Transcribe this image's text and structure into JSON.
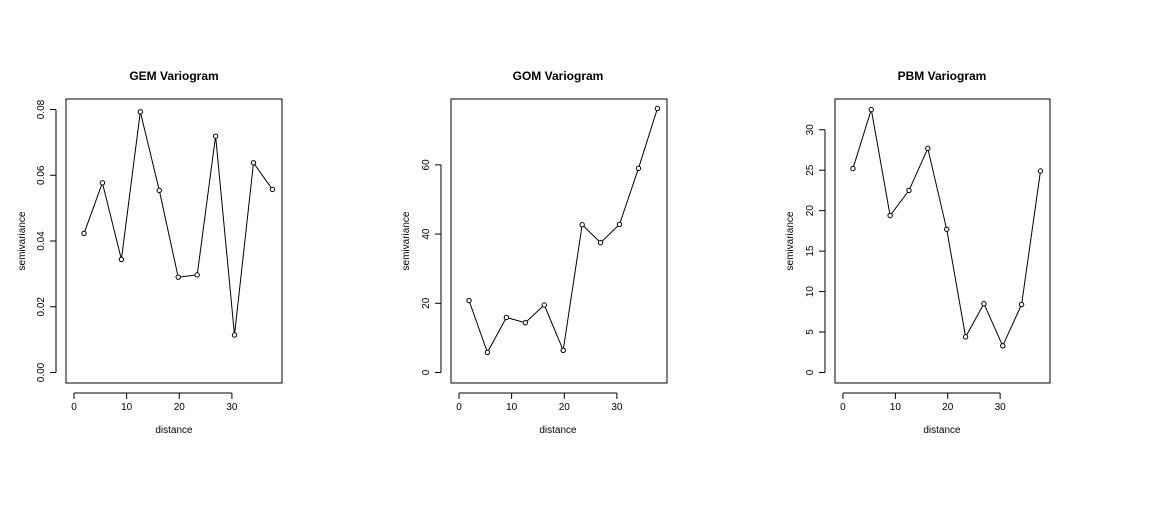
{
  "colors": {
    "line": "#000000",
    "points": "#000000",
    "frame": "#000000",
    "background": "#ffffff"
  },
  "chart_data": [
    {
      "type": "line",
      "title": "GEM Variogram",
      "xlabel": "distance",
      "ylabel": "semivariance",
      "xlim": [
        0,
        38
      ],
      "ylim": [
        0,
        0.08
      ],
      "xticks": [
        0,
        10,
        20,
        30
      ],
      "yticks": [
        0.0,
        0.02,
        0.04,
        0.06,
        0.08
      ],
      "ytick_labels": [
        "0.00",
        "0.02",
        "0.04",
        "0.06",
        "0.08"
      ],
      "xtick_labels": [
        "0",
        "10",
        "20",
        "30"
      ],
      "grid": false,
      "markers": "open-circle",
      "series": [
        {
          "x": [
            1.9,
            5.4,
            9.0,
            12.6,
            16.2,
            19.8,
            23.4,
            26.9,
            30.5,
            34.1,
            37.7
          ],
          "y": [
            0.0423,
            0.0577,
            0.0344,
            0.0793,
            0.0554,
            0.029,
            0.0297,
            0.0719,
            0.0114,
            0.0638,
            0.0557
          ]
        }
      ]
    },
    {
      "type": "line",
      "title": "GOM Variogram",
      "xlabel": "distance",
      "ylabel": "semivariance",
      "xlim": [
        0,
        38
      ],
      "ylim": [
        0,
        76
      ],
      "xticks": [
        0,
        10,
        20,
        30
      ],
      "yticks": [
        0,
        20,
        40,
        60
      ],
      "ytick_labels": [
        "0",
        "20",
        "40",
        "60"
      ],
      "xtick_labels": [
        "0",
        "10",
        "20",
        "30"
      ],
      "grid": false,
      "markers": "open-circle",
      "series": [
        {
          "x": [
            1.9,
            5.4,
            9.0,
            12.6,
            16.2,
            19.8,
            23.4,
            26.9,
            30.5,
            34.1,
            37.7
          ],
          "y": [
            20.8,
            5.8,
            15.9,
            14.4,
            19.5,
            6.4,
            42.7,
            37.5,
            42.8,
            59.0,
            76.3
          ]
        }
      ]
    },
    {
      "type": "line",
      "title": "PBM Variogram",
      "xlabel": "distance",
      "ylabel": "semivariance",
      "xlim": [
        0,
        38
      ],
      "ylim": [
        0,
        32.5
      ],
      "xticks": [
        0,
        10,
        20,
        30
      ],
      "yticks": [
        0,
        5,
        10,
        15,
        20,
        25,
        30
      ],
      "ytick_labels": [
        "0",
        "5",
        "10",
        "15",
        "20",
        "25",
        "30"
      ],
      "xtick_labels": [
        "0",
        "10",
        "20",
        "30"
      ],
      "grid": false,
      "markers": "open-circle",
      "series": [
        {
          "x": [
            1.9,
            5.4,
            9.0,
            12.6,
            16.2,
            19.8,
            23.4,
            26.9,
            30.5,
            34.1,
            37.7
          ],
          "y": [
            25.2,
            32.5,
            19.4,
            22.5,
            27.7,
            17.7,
            4.4,
            8.5,
            3.3,
            8.4,
            24.9
          ]
        }
      ]
    }
  ]
}
